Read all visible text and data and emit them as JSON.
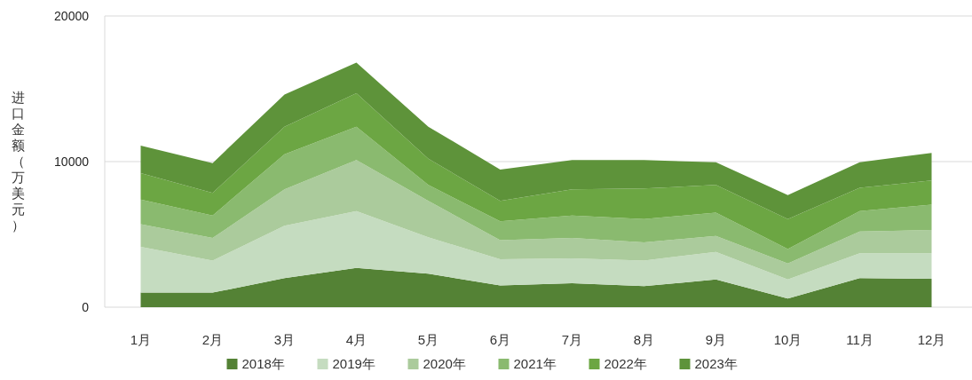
{
  "chart_data": {
    "type": "area",
    "stacked": true,
    "ylabel": "进口金额（万美元）",
    "categories": [
      "1月",
      "2月",
      "3月",
      "4月",
      "5月",
      "6月",
      "7月",
      "8月",
      "9月",
      "10月",
      "11月",
      "12月"
    ],
    "series": [
      {
        "name": "2018年",
        "color": "#548235",
        "values": [
          1000,
          1000,
          2000,
          2700,
          2300,
          1500,
          1650,
          1450,
          1900,
          600,
          2000,
          1950
        ]
      },
      {
        "name": "2019年",
        "color": "#c5dcc0",
        "values": [
          3150,
          2200,
          3600,
          3900,
          2500,
          1800,
          1700,
          1750,
          1900,
          1300,
          1700,
          1750
        ]
      },
      {
        "name": "2020年",
        "color": "#abcb9c",
        "values": [
          1550,
          1550,
          2500,
          3500,
          2500,
          1300,
          1400,
          1250,
          1100,
          1100,
          1500,
          1600
        ]
      },
      {
        "name": "2021年",
        "color": "#8aba6f",
        "values": [
          1700,
          1550,
          2400,
          2300,
          1100,
          1300,
          1550,
          1600,
          1600,
          1000,
          1400,
          1750
        ]
      },
      {
        "name": "2022年",
        "color": "#6ca643",
        "values": [
          1800,
          1550,
          1900,
          2300,
          1800,
          1400,
          1800,
          2100,
          1900,
          2050,
          1600,
          1650
        ]
      },
      {
        "name": "2023年",
        "color": "#5e933a",
        "values": [
          1900,
          2050,
          2200,
          2100,
          2200,
          2150,
          2000,
          1950,
          1550,
          1650,
          1750,
          1900
        ]
      }
    ],
    "ylim": [
      0,
      20000
    ],
    "yticks": [
      0,
      10000,
      20000
    ],
    "grid": "y",
    "legend": "bottom"
  }
}
